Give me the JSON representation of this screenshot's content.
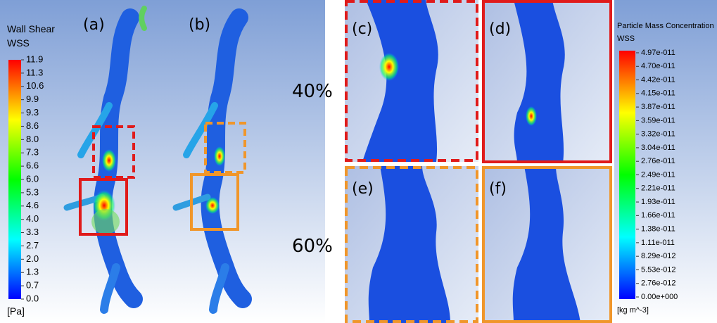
{
  "left_panel": {
    "colorbar_title": "Wall Shear",
    "colorbar_variable": "WSS",
    "unit": "[Pa]",
    "ticks": [
      "11.9",
      "11.3",
      "10.6",
      "9.9",
      "9.3",
      "8.6",
      "8.0",
      "7.3",
      "6.6",
      "6.0",
      "5.3",
      "4.6",
      "4.0",
      "3.3",
      "2.7",
      "2.0",
      "1.3",
      "0.7",
      "0.0"
    ],
    "labels": [
      "(a)",
      "(b)"
    ]
  },
  "rows": [
    "40%",
    "60%"
  ],
  "zoom_panels": [
    "(c)",
    "(d)",
    "(e)",
    "(f)"
  ],
  "right_panel": {
    "colorbar_title": "Particle Mass Concentration",
    "colorbar_variable": "WSS",
    "unit": "[kg m^-3]",
    "ticks": [
      "4.97e-011",
      "4.70e-011",
      "4.42e-011",
      "4.15e-011",
      "3.87e-011",
      "3.59e-011",
      "3.32e-011",
      "3.04e-011",
      "2.76e-011",
      "2.49e-011",
      "2.21e-011",
      "1.93e-011",
      "1.66e-011",
      "1.38e-011",
      "1.11e-011",
      "8.29e-012",
      "5.53e-012",
      "2.76e-012",
      "0.00e+000"
    ]
  }
}
